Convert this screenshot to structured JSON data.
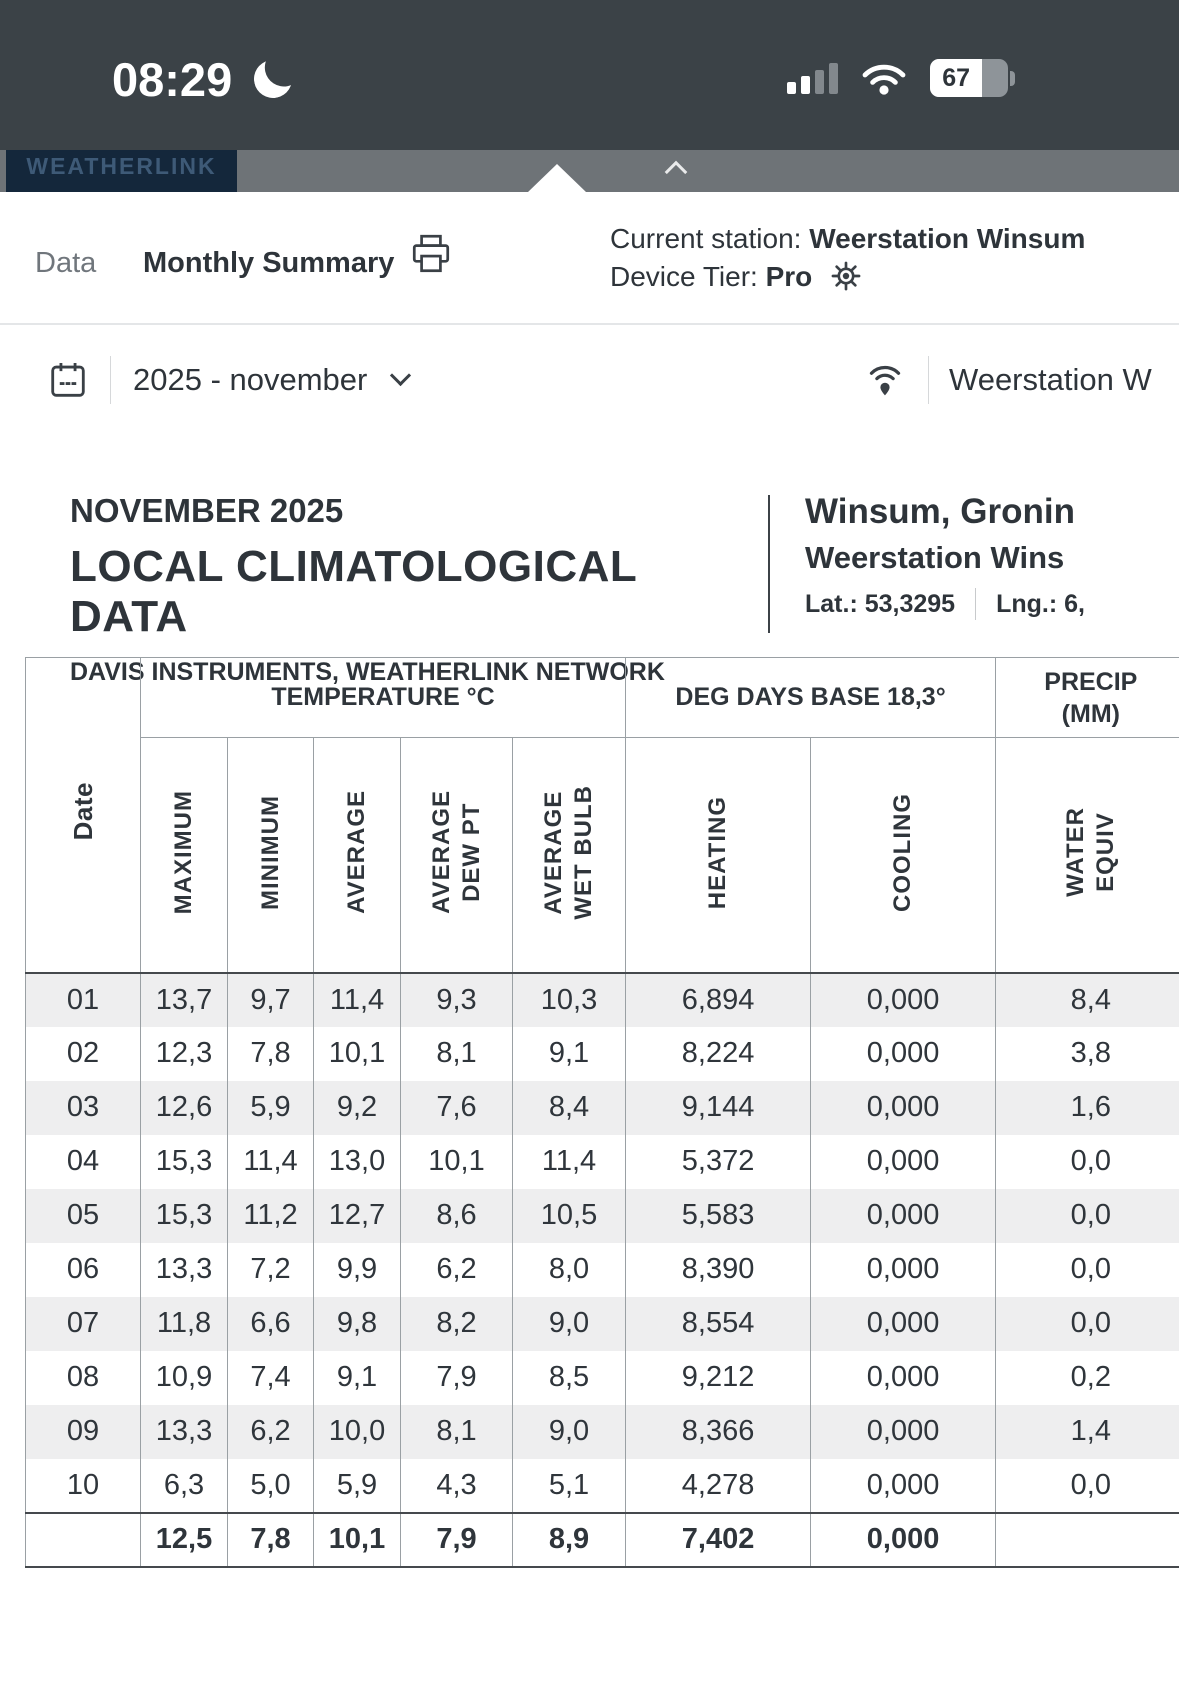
{
  "status_bar": {
    "time": "08:29",
    "battery_percent": "67"
  },
  "app_header": {
    "brand": "WEATHERLINK"
  },
  "toolbar": {
    "data_tab": "Data",
    "monthly_tab": "Monthly Summary",
    "current_station_label": "Current station:",
    "current_station_value": "Weerstation Winsum",
    "device_tier_label": "Device Tier:",
    "device_tier_value": "Pro"
  },
  "filter_bar": {
    "period": "2025 - november",
    "station": "Weerstation W"
  },
  "report_header": {
    "month": "NOVEMBER 2025",
    "title": "LOCAL CLIMATOLOGICAL DATA",
    "subtitle": "DAVIS INSTRUMENTS, WEATHERLINK NETWORK",
    "location": "Winsum, Gronin",
    "station": "Weerstation Wins",
    "latitude": "Lat.: 53,3295",
    "longitude": "Lng.: 6,"
  },
  "table": {
    "date_header": "Date",
    "groups": {
      "temperature": "TEMPERATURE °C",
      "deg_days": "DEG DAYS BASE 18,3°",
      "precip_line1": "PRECIP",
      "precip_line2": "(MM)"
    },
    "columns": [
      {
        "id": "maximum",
        "label": "MAXIMUM"
      },
      {
        "id": "minimum",
        "label": "MINIMUM"
      },
      {
        "id": "average",
        "label": "AVERAGE"
      },
      {
        "id": "average-dew-pt",
        "label": "AVERAGE\nDEW PT"
      },
      {
        "id": "average-wet-bulb",
        "label": "AVERAGE\nWET BULB"
      },
      {
        "id": "heating",
        "label": "HEATING"
      },
      {
        "id": "cooling",
        "label": "COOLING"
      },
      {
        "id": "water-equiv",
        "label": "WATER\nEQUIV"
      }
    ],
    "rows": [
      [
        "01",
        "13,7",
        "9,7",
        "11,4",
        "9,3",
        "10,3",
        "6,894",
        "0,000",
        "8,4"
      ],
      [
        "02",
        "12,3",
        "7,8",
        "10,1",
        "8,1",
        "9,1",
        "8,224",
        "0,000",
        "3,8"
      ],
      [
        "03",
        "12,6",
        "5,9",
        "9,2",
        "7,6",
        "8,4",
        "9,144",
        "0,000",
        "1,6"
      ],
      [
        "04",
        "15,3",
        "11,4",
        "13,0",
        "10,1",
        "11,4",
        "5,372",
        "0,000",
        "0,0"
      ],
      [
        "05",
        "15,3",
        "11,2",
        "12,7",
        "8,6",
        "10,5",
        "5,583",
        "0,000",
        "0,0"
      ],
      [
        "06",
        "13,3",
        "7,2",
        "9,9",
        "6,2",
        "8,0",
        "8,390",
        "0,000",
        "0,0"
      ],
      [
        "07",
        "11,8",
        "6,6",
        "9,8",
        "8,2",
        "9,0",
        "8,554",
        "0,000",
        "0,0"
      ],
      [
        "08",
        "10,9",
        "7,4",
        "9,1",
        "7,9",
        "8,5",
        "9,212",
        "0,000",
        "0,2"
      ],
      [
        "09",
        "13,3",
        "6,2",
        "10,0",
        "8,1",
        "9,0",
        "8,366",
        "0,000",
        "1,4"
      ],
      [
        "10",
        "6,3",
        "5,0",
        "5,9",
        "4,3",
        "5,1",
        "4,278",
        "0,000",
        "0,0"
      ]
    ],
    "summary": [
      "",
      "12,5",
      "7,8",
      "10,1",
      "7,9",
      "8,9",
      "7,402",
      "0,000",
      ""
    ]
  }
}
